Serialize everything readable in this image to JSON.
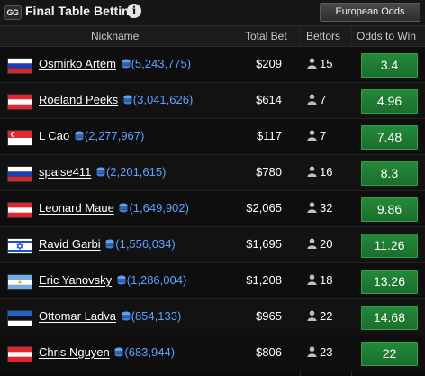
{
  "header": {
    "logo_text": "GG",
    "title": "Final Table Betting",
    "info_icon": "info-icon",
    "odds_format": "European Odds"
  },
  "columns": {
    "nickname": "Nickname",
    "total_bet": "Total Bet",
    "bettors": "Bettors",
    "odds": "Odds to Win"
  },
  "colors": {
    "odds_button": "#1f7a32",
    "chips_text": "#5ea0ff",
    "background": "#0b0b0b"
  },
  "rows": [
    {
      "flag": "Russia",
      "name": "Osmirko Artem",
      "chips": "(5,243,775)",
      "total_bet": "$209",
      "bettors": "15",
      "odds": "3.4"
    },
    {
      "flag": "Austria",
      "name": "Roeland Peeks",
      "chips": "(3,041,626)",
      "total_bet": "$614",
      "bettors": "7",
      "odds": "4.96"
    },
    {
      "flag": "Singapore",
      "name": "L Cao",
      "chips": "(2,277,967)",
      "total_bet": "$117",
      "bettors": "7",
      "odds": "7.48"
    },
    {
      "flag": "Russia",
      "name": "spaise411",
      "chips": "(2,201,615)",
      "total_bet": "$780",
      "bettors": "16",
      "odds": "8.3"
    },
    {
      "flag": "Austria",
      "name": "Leonard Maue",
      "chips": "(1,649,902)",
      "total_bet": "$2,065",
      "bettors": "32",
      "odds": "9.86"
    },
    {
      "flag": "Israel",
      "name": "Ravid Garbi",
      "chips": "(1,556,034)",
      "total_bet": "$1,695",
      "bettors": "20",
      "odds": "11.26"
    },
    {
      "flag": "Argentina",
      "name": "Eric Yanovsky",
      "chips": "(1,286,004)",
      "total_bet": "$1,208",
      "bettors": "18",
      "odds": "13.26"
    },
    {
      "flag": "Estonia",
      "name": "Ottomar Ladva",
      "chips": "(854,133)",
      "total_bet": "$965",
      "bettors": "22",
      "odds": "14.68"
    },
    {
      "flag": "Austria",
      "name": "Chris Nguyen",
      "chips": "(683,944)",
      "total_bet": "$806",
      "bettors": "23",
      "odds": "22"
    }
  ]
}
